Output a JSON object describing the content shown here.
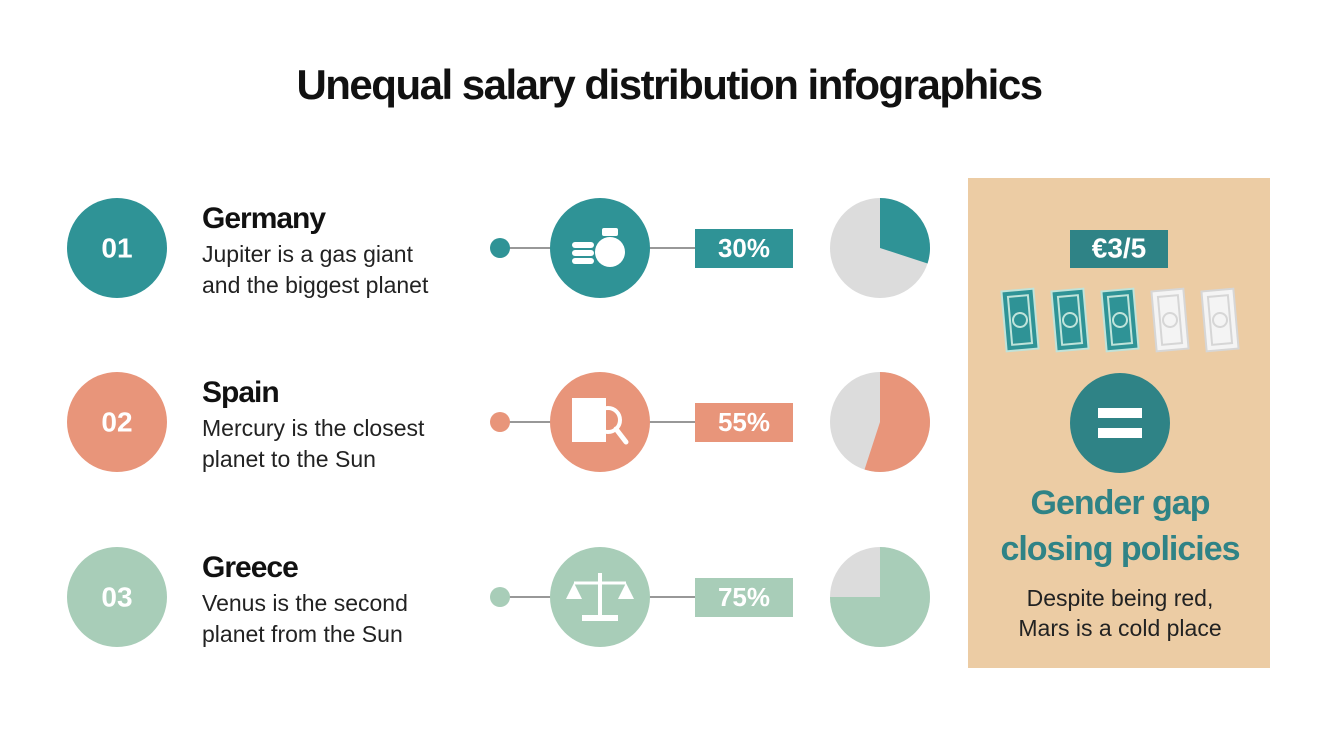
{
  "title": "Unequal salary distribution infographics",
  "rows": [
    {
      "number": "01",
      "country": "Germany",
      "description": [
        "Jupiter is a gas giant",
        "and the biggest planet"
      ],
      "value": 30,
      "value_label": "30%",
      "color": "#2f9396"
    },
    {
      "number": "02",
      "country": "Spain",
      "description": [
        "Mercury is the closest",
        "planet to the Sun"
      ],
      "value": 55,
      "value_label": "55%",
      "color": "#e8957a"
    },
    {
      "number": "03",
      "country": "Greece",
      "description": [
        "Venus is the second",
        "planet from the Sun"
      ],
      "value": 75,
      "value_label": "75%",
      "color": "#a8cdb8"
    }
  ],
  "panel": {
    "amount": "€3/5",
    "bills_filled": 3,
    "bills_total": 5,
    "heading": [
      "Gender gap",
      "closing policies"
    ],
    "text": [
      "Despite being red,",
      "Mars is a cold place"
    ]
  }
}
